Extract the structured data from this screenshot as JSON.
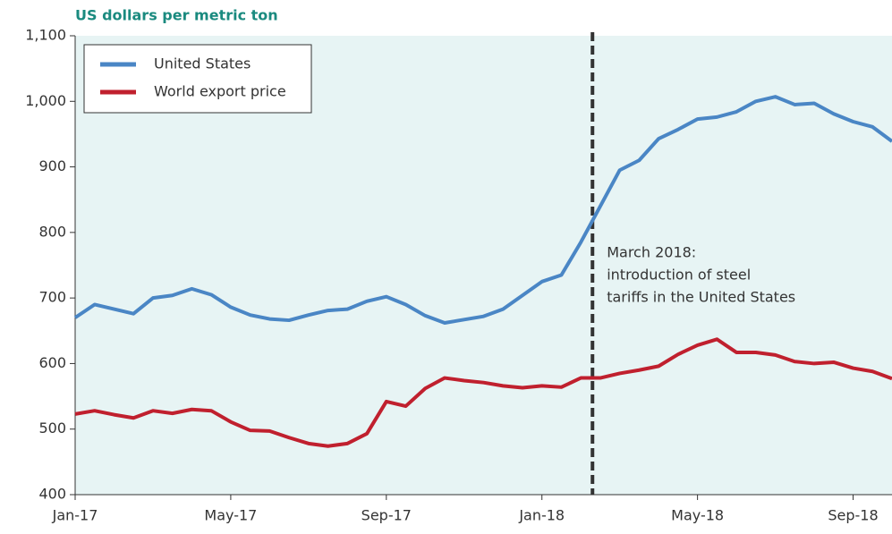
{
  "chart_data": {
    "type": "line",
    "y_axis_label": "US dollars per metric ton",
    "x": [
      0,
      0.5,
      1,
      1.5,
      2,
      2.5,
      3,
      3.5,
      4,
      4.5,
      5,
      5.5,
      6,
      6.5,
      7,
      7.5,
      8,
      8.5,
      9,
      9.5,
      10,
      10.5,
      11,
      11.5,
      12,
      12.5,
      13,
      13.5,
      14,
      14.5,
      15,
      15.5,
      16,
      16.5,
      17,
      17.5,
      18,
      18.5,
      19,
      19.5,
      20,
      20.5,
      21
    ],
    "xlim": [
      0,
      21
    ],
    "xticks": [
      {
        "value": 0,
        "label": "Jan-17"
      },
      {
        "value": 4,
        "label": "May-17"
      },
      {
        "value": 8,
        "label": "Sep-17"
      },
      {
        "value": 12,
        "label": "Jan-18"
      },
      {
        "value": 16,
        "label": "May-18"
      },
      {
        "value": 20,
        "label": "Sep-18"
      }
    ],
    "ylim": [
      400,
      1100
    ],
    "yticks": [
      400,
      500,
      600,
      700,
      800,
      900,
      {
        "value": 1000,
        "label": "1,000"
      },
      {
        "value": 1100,
        "label": "1,100"
      }
    ],
    "series": [
      {
        "name": "United States",
        "color": "#4a86c5",
        "values": [
          670,
          690,
          683,
          676,
          700,
          704,
          714,
          705,
          686,
          674,
          668,
          666,
          674,
          681,
          683,
          695,
          702,
          690,
          673,
          662,
          667,
          672,
          683,
          704,
          725,
          735,
          785,
          840,
          895,
          910,
          943,
          957,
          973,
          976,
          984,
          1000,
          1007,
          995,
          997,
          981,
          969,
          961,
          939
        ]
      },
      {
        "name": "World export price",
        "color": "#c0202e",
        "values": [
          523,
          528,
          522,
          517,
          528,
          524,
          530,
          528,
          511,
          498,
          497,
          487,
          478,
          474,
          478,
          493,
          542,
          535,
          562,
          578,
          574,
          571,
          566,
          563,
          566,
          564,
          578,
          578,
          585,
          590,
          596,
          614,
          628,
          637,
          617,
          617,
          613,
          603,
          600,
          602,
          593,
          588,
          577
        ]
      }
    ],
    "annotation": {
      "x": 13.3,
      "lines": [
        "March 2018:",
        "introduction of steel",
        "tariffs in the United States"
      ]
    },
    "legend": "upper left"
  }
}
